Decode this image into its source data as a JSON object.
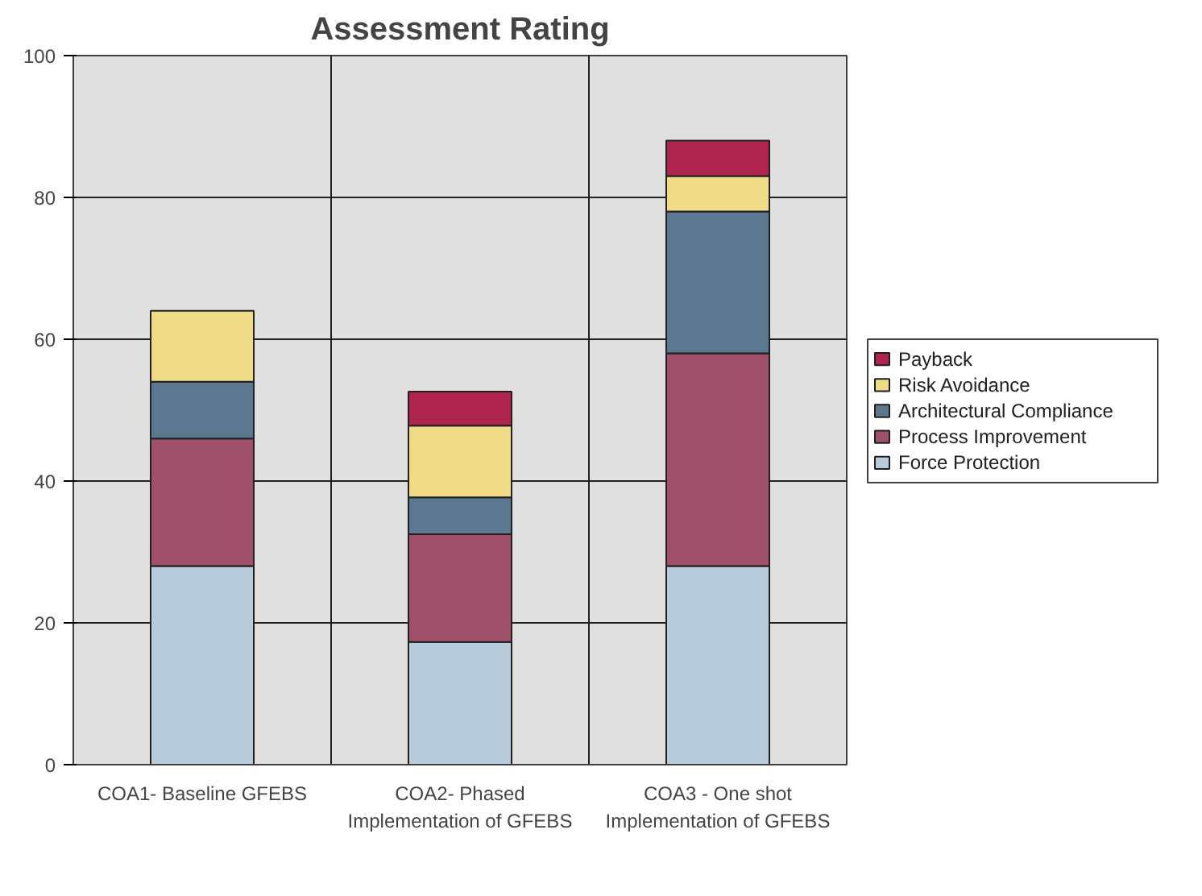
{
  "chart_data": {
    "type": "bar",
    "title": "Assessment Rating",
    "stacked": true,
    "categories": [
      "COA1- Baseline GFEBS",
      "COA2- Phased\nImplementation of GFEBS",
      "COA3 - One shot\nImplementation of GFEBS"
    ],
    "series": [
      {
        "name": "Force Protection",
        "color": "#b8ccdc",
        "values": [
          28,
          17.3,
          28
        ]
      },
      {
        "name": "Process Improvement",
        "color": "#a0506a",
        "values": [
          18,
          15.2,
          30
        ]
      },
      {
        "name": "Architectural Compliance",
        "color": "#5c7890",
        "values": [
          8,
          5.2,
          20
        ]
      },
      {
        "name": "Risk Avoidance",
        "color": "#f0dc88",
        "values": [
          10,
          10.1,
          5
        ]
      },
      {
        "name": "Payback",
        "color": "#b02450",
        "values": [
          null,
          4.8,
          5
        ]
      }
    ],
    "ylim": [
      0,
      100
    ],
    "yticks": [
      0,
      20,
      40,
      60,
      80,
      100
    ],
    "grid": true,
    "legend": "right"
  }
}
